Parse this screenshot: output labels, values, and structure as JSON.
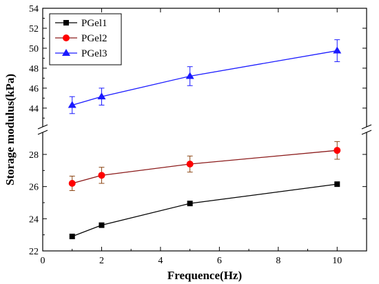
{
  "chart_data": {
    "type": "line",
    "xlabel": "Frequence(Hz)",
    "ylabel": "Storage modulus(kPa)",
    "xlim": [
      0,
      11
    ],
    "xticks": [
      0,
      2,
      4,
      6,
      8,
      10
    ],
    "y_broken_axis": true,
    "ylim_lower": [
      22,
      29.2
    ],
    "ylim_upper": [
      42.4,
      54
    ],
    "yticks_lower": [
      22,
      24,
      26,
      28
    ],
    "yticks_upper": [
      44,
      46,
      48,
      50,
      52,
      54
    ],
    "x": [
      1,
      2,
      5,
      10
    ],
    "series": [
      {
        "name": "PGel1",
        "color": "#000000",
        "marker": "square",
        "values": [
          22.9,
          23.6,
          24.95,
          26.15
        ],
        "errors": [
          0,
          0,
          0,
          0
        ]
      },
      {
        "name": "PGel2",
        "color": "#ff0000",
        "line_color": "#8b1a1a",
        "marker": "circle",
        "values": [
          26.2,
          26.7,
          27.4,
          28.25
        ],
        "errors": [
          0.45,
          0.5,
          0.5,
          0.55
        ]
      },
      {
        "name": "PGel3",
        "color": "#1a1aff",
        "marker": "triangle",
        "values": [
          44.3,
          45.15,
          47.2,
          49.75
        ],
        "errors": [
          0.85,
          0.85,
          0.95,
          1.1
        ]
      }
    ],
    "legend": "top-left",
    "grid": false
  }
}
